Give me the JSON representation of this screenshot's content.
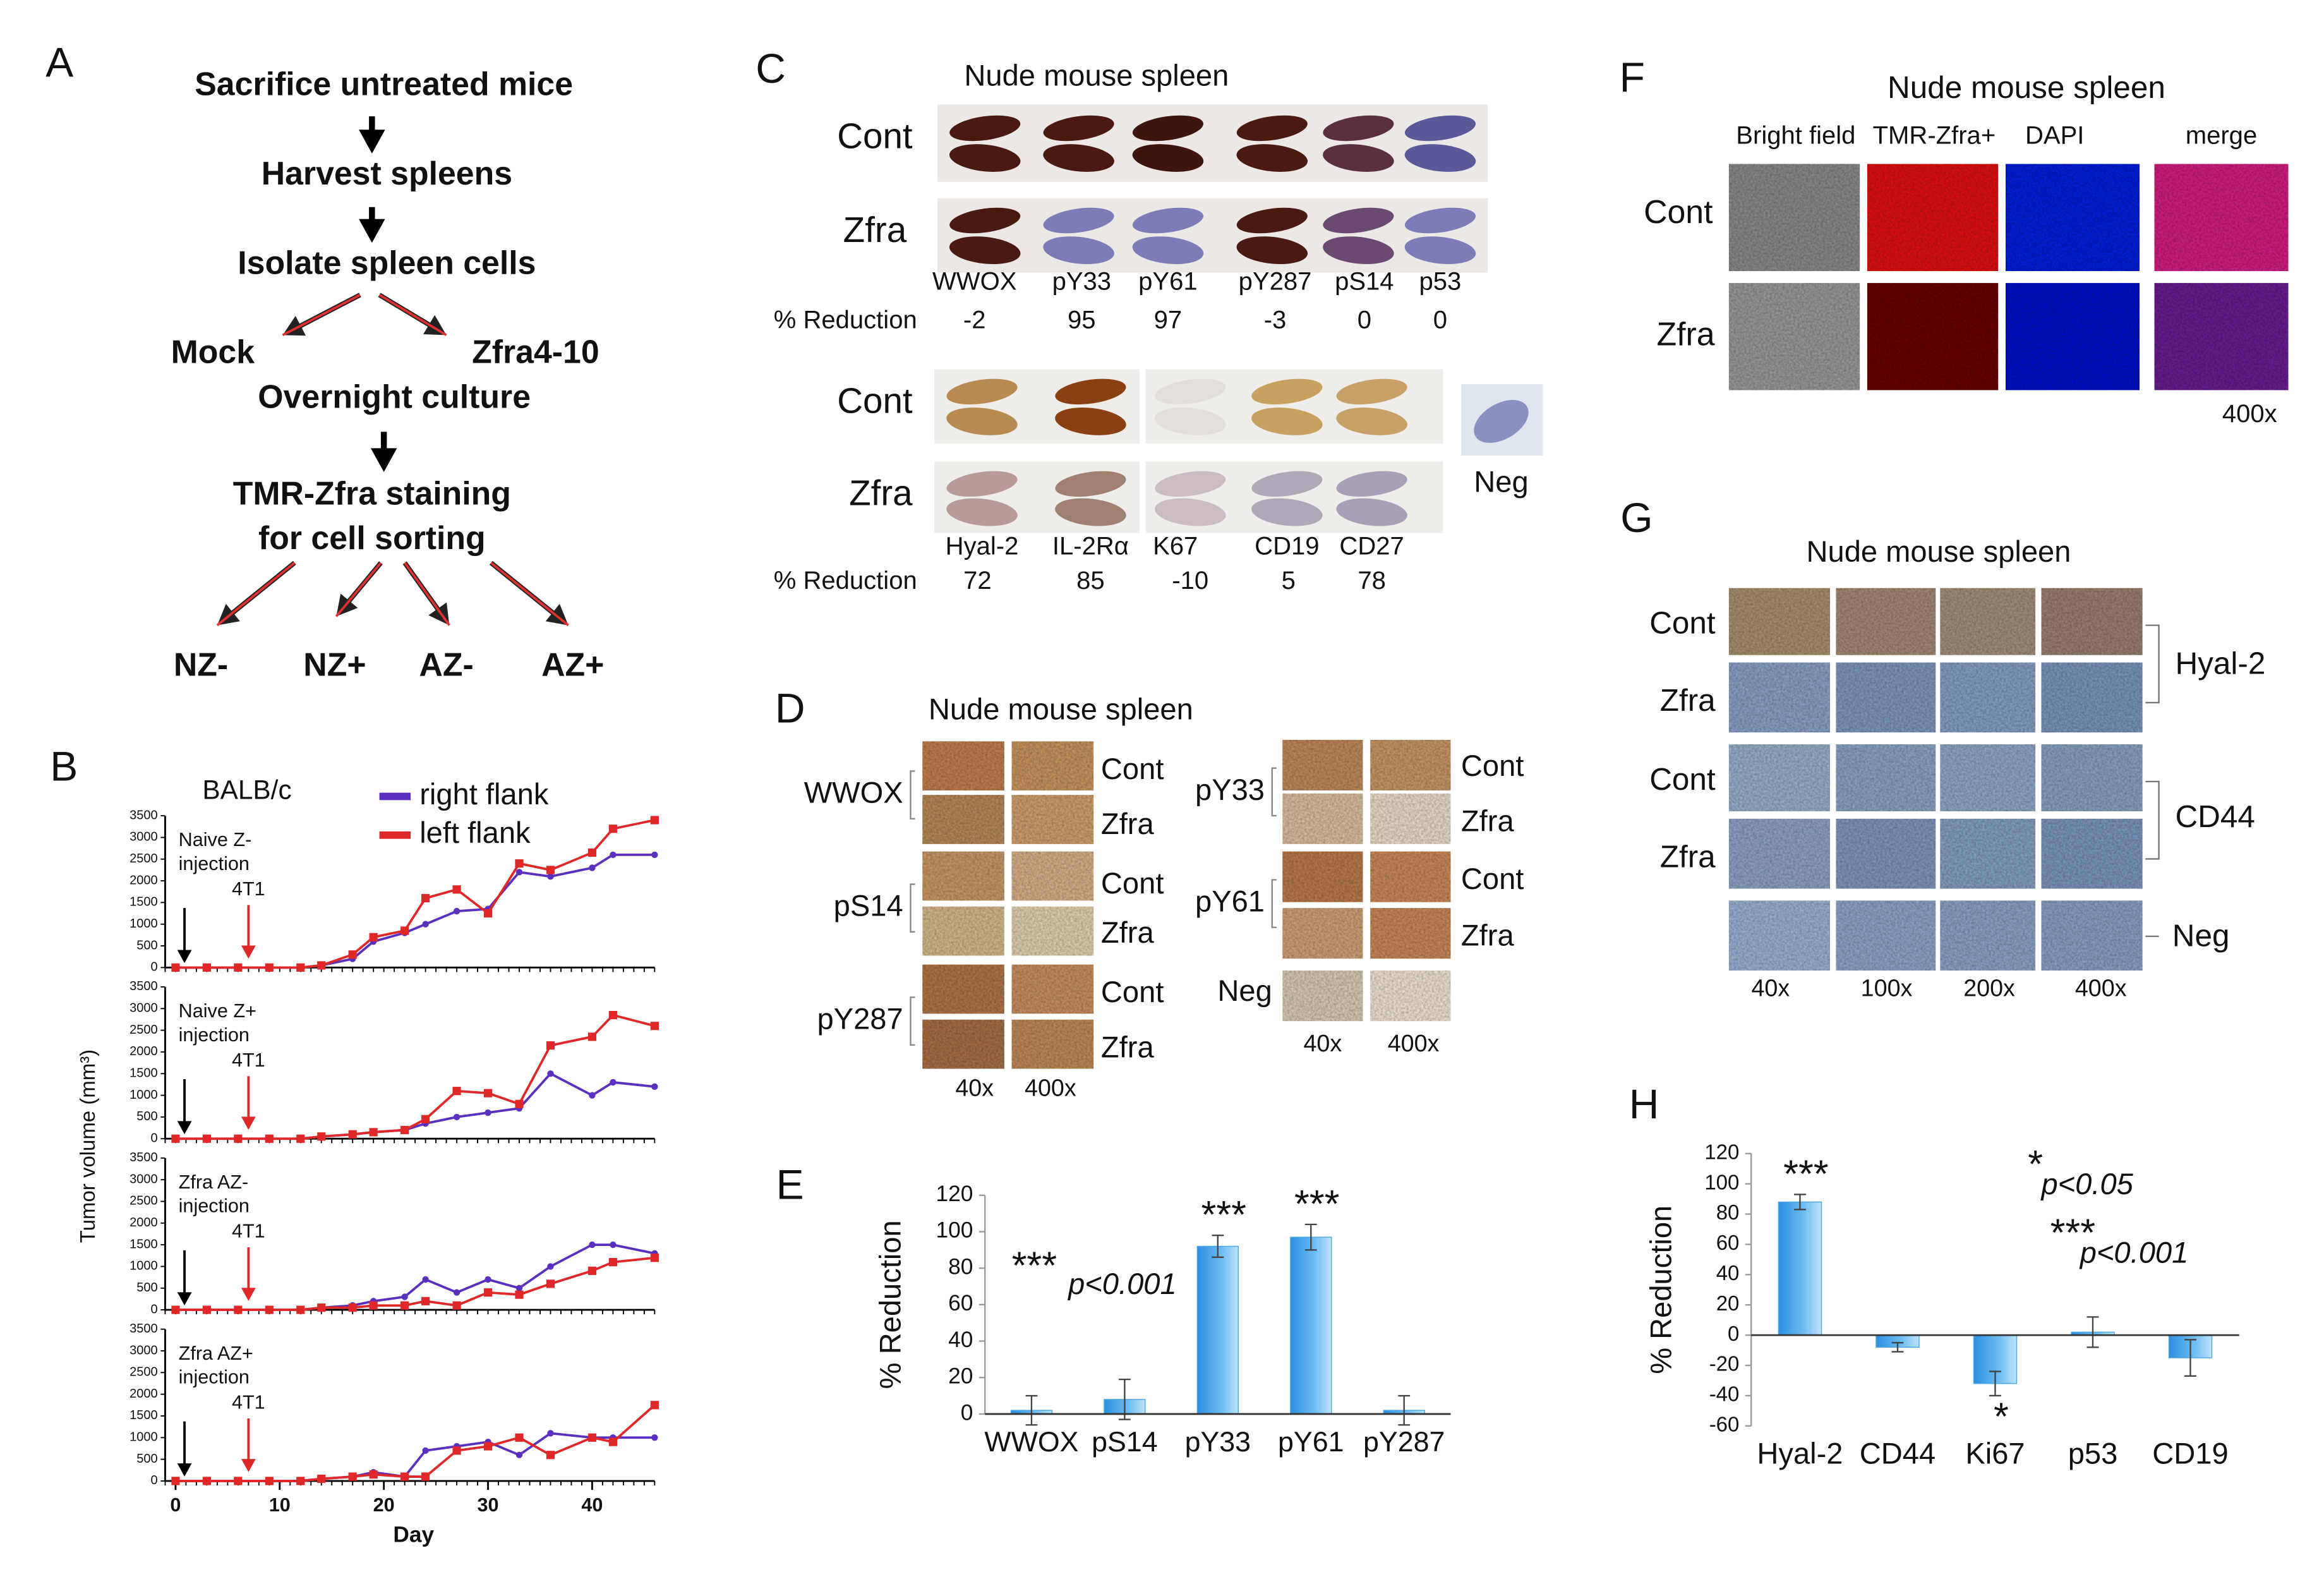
{
  "panel_labels": [
    "A",
    "B",
    "C",
    "D",
    "E",
    "F",
    "G",
    "H"
  ],
  "flowchart": {
    "nodes": [
      "Sacrifice untreated mice",
      "Harvest spleens",
      "Isolate spleen cells",
      "Mock",
      "Zfra4-10",
      "Overnight culture",
      "TMR-Zfra staining",
      "for cell sorting",
      "NZ-",
      "NZ+",
      "AZ-",
      "AZ+"
    ]
  },
  "chart_data": [
    {
      "type": "line",
      "title": "BALB/c",
      "ylabel": "Tumor volume (mm³)",
      "legend": true,
      "injection_label": [
        "Naive Z-",
        "injection"
      ],
      "cell_label": "4T1",
      "x": [
        0,
        3,
        6,
        9,
        12,
        14,
        17,
        19,
        22,
        24,
        27,
        30,
        33,
        36,
        40,
        42,
        46
      ],
      "series": [
        {
          "name": "right flank",
          "color": "#5b2fc0",
          "marker": "circle",
          "values": [
            0,
            0,
            0,
            0,
            0,
            50,
            200,
            600,
            800,
            1000,
            1300,
            1350,
            2200,
            2100,
            2300,
            2600,
            2600
          ]
        },
        {
          "name": "left flank",
          "color": "#e02828",
          "marker": "square",
          "values": [
            0,
            0,
            0,
            0,
            0,
            50,
            300,
            700,
            850,
            1600,
            1800,
            1250,
            2400,
            2250,
            2650,
            3200,
            3400
          ]
        }
      ],
      "xlim": [
        -1,
        46
      ],
      "ylim": [
        0,
        3500
      ],
      "yticks": [
        0,
        500,
        1000,
        1500,
        2000,
        2500,
        3000,
        3500
      ]
    },
    {
      "type": "line",
      "injection_label": [
        "Naive Z+",
        "injection"
      ],
      "cell_label": "4T1",
      "x": [
        0,
        3,
        6,
        9,
        12,
        14,
        17,
        19,
        22,
        24,
        27,
        30,
        33,
        36,
        40,
        42,
        46
      ],
      "series": [
        {
          "color": "#5b2fc0",
          "marker": "circle",
          "values": [
            0,
            0,
            0,
            0,
            0,
            50,
            100,
            150,
            200,
            350,
            500,
            600,
            700,
            1500,
            1000,
            1300,
            1200
          ]
        },
        {
          "color": "#e02828",
          "marker": "square",
          "values": [
            0,
            0,
            0,
            0,
            0,
            50,
            100,
            150,
            200,
            450,
            1100,
            1050,
            800,
            2150,
            2350,
            2850,
            2600
          ]
        }
      ],
      "xlim": [
        -1,
        46
      ],
      "ylim": [
        0,
        3500
      ],
      "yticks": [
        0,
        500,
        1000,
        1500,
        2000,
        2500,
        3000,
        3500
      ]
    },
    {
      "type": "line",
      "injection_label": [
        "Zfra AZ-",
        "injection"
      ],
      "cell_label": "4T1",
      "x": [
        0,
        3,
        6,
        9,
        12,
        14,
        17,
        19,
        22,
        24,
        27,
        30,
        33,
        36,
        40,
        42,
        46
      ],
      "series": [
        {
          "color": "#5b2fc0",
          "marker": "circle",
          "values": [
            0,
            0,
            0,
            0,
            0,
            50,
            100,
            200,
            300,
            700,
            400,
            700,
            500,
            1000,
            1500,
            1500,
            1300
          ]
        },
        {
          "color": "#e02828",
          "marker": "square",
          "values": [
            0,
            0,
            0,
            0,
            0,
            50,
            50,
            100,
            100,
            200,
            100,
            400,
            350,
            600,
            900,
            1100,
            1200
          ]
        }
      ],
      "xlim": [
        -1,
        46
      ],
      "ylim": [
        0,
        3500
      ],
      "yticks": [
        0,
        500,
        1000,
        1500,
        2000,
        2500,
        3000,
        3500
      ]
    },
    {
      "type": "line",
      "xlabel": "Day",
      "injection_label": [
        "Zfra AZ+",
        "injection"
      ],
      "cell_label": "4T1",
      "x": [
        0,
        3,
        6,
        9,
        12,
        14,
        17,
        19,
        22,
        24,
        27,
        30,
        33,
        36,
        40,
        42,
        46
      ],
      "series": [
        {
          "color": "#5b2fc0",
          "marker": "circle",
          "values": [
            0,
            0,
            0,
            0,
            0,
            50,
            100,
            200,
            100,
            700,
            800,
            900,
            600,
            1100,
            1000,
            1000,
            1000
          ]
        },
        {
          "color": "#e02828",
          "marker": "square",
          "values": [
            0,
            0,
            0,
            0,
            0,
            50,
            100,
            150,
            100,
            100,
            700,
            800,
            1000,
            600,
            1000,
            900,
            1750
          ]
        }
      ],
      "xlim": [
        -1,
        46
      ],
      "xticks": [
        0,
        10,
        20,
        30,
        40
      ],
      "ylim": [
        0,
        3500
      ],
      "yticks": [
        0,
        500,
        1000,
        1500,
        2000,
        2500,
        3000,
        3500
      ]
    },
    {
      "type": "bar",
      "ylabel": "% Reduction",
      "categories": [
        "WWOX",
        "pS14",
        "pY33",
        "pY61",
        "pY287"
      ],
      "values": [
        2,
        8,
        92,
        97,
        2
      ],
      "errors": [
        8,
        11,
        6,
        7,
        8
      ],
      "color": "#4aa6ea",
      "ylim": [
        0,
        120
      ],
      "yticks": [
        0,
        20,
        40,
        60,
        80,
        100,
        120
      ],
      "significance": [
        null,
        null,
        "***",
        "***",
        null
      ],
      "notes": [
        {
          "stars": "***",
          "text": "p<0.001"
        }
      ]
    },
    {
      "type": "bar",
      "ylabel": "% Reduction",
      "categories": [
        "Hyal-2",
        "CD44",
        "Ki67",
        "p53",
        "CD19"
      ],
      "values": [
        88,
        -8,
        -32,
        2,
        -15
      ],
      "errors": [
        5,
        3,
        8,
        10,
        12
      ],
      "color": "#4aa6ea",
      "ylim": [
        -60,
        120
      ],
      "yticks": [
        -60,
        -40,
        -20,
        0,
        20,
        40,
        60,
        80,
        100,
        120
      ],
      "significance": [
        "***",
        null,
        "*",
        null,
        null
      ],
      "notes": [
        {
          "stars": "*",
          "text": "p<0.05"
        },
        {
          "stars": "***",
          "text": "p<0.001"
        }
      ]
    }
  ],
  "panel_c": {
    "title": "Nude mouse spleen",
    "rows": [
      "Cont",
      "Zfra"
    ],
    "reduction_label": "% Reduction",
    "set1": {
      "markers": [
        "WWOX",
        "pY33",
        "pY61",
        "pY287",
        "pS14",
        "p53"
      ],
      "reductions": [
        -2,
        95,
        97,
        -3,
        0,
        0
      ]
    },
    "set2": {
      "markers": [
        "Hyal-2",
        "IL-2Rα",
        "K67",
        "CD19",
        "CD27"
      ],
      "reductions": [
        72,
        85,
        -10,
        5,
        78
      ]
    },
    "neg": "Neg"
  },
  "panel_d": {
    "title": "Nude mouse spleen",
    "groups": [
      {
        "name": "WWOX",
        "rows": [
          "Cont",
          "Zfra"
        ]
      },
      {
        "name": "pS14",
        "rows": [
          "Cont",
          "Zfra"
        ]
      },
      {
        "name": "pY287",
        "rows": [
          "Cont",
          "Zfra"
        ]
      },
      {
        "name": "pY33",
        "rows": [
          "Cont",
          "Zfra"
        ]
      },
      {
        "name": "pY61",
        "rows": [
          "Cont",
          "Zfra"
        ]
      }
    ],
    "neg": "Neg",
    "mags": [
      "40x",
      "400x"
    ]
  },
  "panel_f": {
    "title": "Nude mouse spleen",
    "columns": [
      "Bright field",
      "TMR-Zfra+",
      "DAPI",
      "merge"
    ],
    "rows": [
      "Cont",
      "Zfra"
    ],
    "mag": "400x"
  },
  "panel_g": {
    "title": "Nude mouse spleen",
    "rows": [
      "Cont",
      "Zfra",
      "Cont",
      "Zfra"
    ],
    "groups": [
      "Hyal-2",
      "CD44",
      "Neg"
    ],
    "mags": [
      "40x",
      "100x",
      "200x",
      "400x"
    ]
  }
}
